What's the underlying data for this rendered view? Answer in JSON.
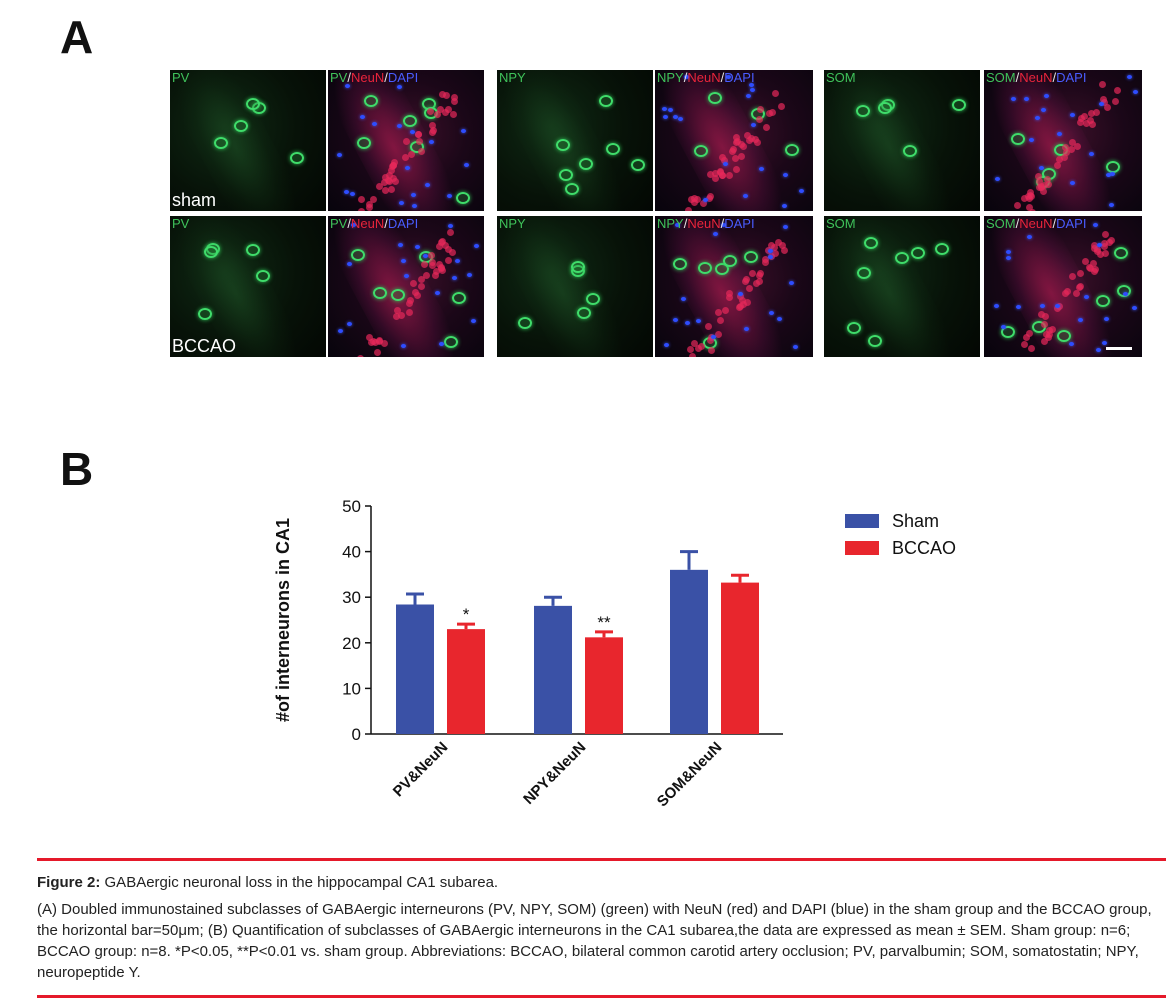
{
  "panel_a": {
    "letter": "A",
    "rows": [
      {
        "label": "sham",
        "tiles": [
          {
            "parts": [
              {
                "text": "PV",
                "color": "green"
              }
            ]
          },
          {
            "parts": [
              {
                "text": "PV",
                "color": "green"
              },
              {
                "text": "/",
                "color": "white"
              },
              {
                "text": "NeuN",
                "color": "red"
              },
              {
                "text": "/",
                "color": "white"
              },
              {
                "text": "DAPI",
                "color": "blue"
              }
            ]
          },
          {
            "parts": [
              {
                "text": "NPY",
                "color": "green"
              }
            ]
          },
          {
            "parts": [
              {
                "text": "NPY",
                "color": "green"
              },
              {
                "text": "/",
                "color": "white"
              },
              {
                "text": "NeuN",
                "color": "red"
              },
              {
                "text": "/",
                "color": "white"
              },
              {
                "text": "DAPI",
                "color": "blue"
              }
            ]
          },
          {
            "parts": [
              {
                "text": "SOM",
                "color": "green"
              }
            ]
          },
          {
            "parts": [
              {
                "text": "SOM",
                "color": "green"
              },
              {
                "text": "/",
                "color": "white"
              },
              {
                "text": "NeuN",
                "color": "red"
              },
              {
                "text": "/",
                "color": "white"
              },
              {
                "text": "DAPI",
                "color": "blue"
              }
            ]
          }
        ]
      },
      {
        "label": "BCCAO",
        "tiles": [
          {
            "parts": [
              {
                "text": "PV",
                "color": "green"
              }
            ]
          },
          {
            "parts": [
              {
                "text": "PV",
                "color": "green"
              },
              {
                "text": "/",
                "color": "white"
              },
              {
                "text": "NeuN",
                "color": "red"
              },
              {
                "text": "/",
                "color": "white"
              },
              {
                "text": "DAPI",
                "color": "blue"
              }
            ]
          },
          {
            "parts": [
              {
                "text": "NPY",
                "color": "green"
              }
            ]
          },
          {
            "parts": [
              {
                "text": "NPY",
                "color": "green"
              },
              {
                "text": "/",
                "color": "white"
              },
              {
                "text": "NeuN",
                "color": "red"
              },
              {
                "text": "/",
                "color": "white"
              },
              {
                "text": "DAPI",
                "color": "blue"
              }
            ]
          },
          {
            "parts": [
              {
                "text": "SOM",
                "color": "green"
              }
            ]
          },
          {
            "parts": [
              {
                "text": "SOM",
                "color": "green"
              },
              {
                "text": "/",
                "color": "white"
              },
              {
                "text": "NeuN",
                "color": "red"
              },
              {
                "text": "/",
                "color": "white"
              },
              {
                "text": "DAPI",
                "color": "blue"
              }
            ]
          }
        ]
      }
    ]
  },
  "panel_b": {
    "letter": "B"
  },
  "chart_data": {
    "type": "bar",
    "categories": [
      "PV&NeuN",
      "NPY&NeuN",
      "SOM&NeuN"
    ],
    "series": [
      {
        "name": "Sham",
        "color": "#3a51a6",
        "values": [
          28.4,
          28.1,
          36.0
        ],
        "errors": [
          2.3,
          1.9,
          4.0
        ]
      },
      {
        "name": "BCCAO",
        "color": "#e8262d",
        "values": [
          23.0,
          21.2,
          33.2
        ],
        "errors": [
          1.1,
          1.2,
          1.6
        ]
      }
    ],
    "annotations": [
      {
        "category": "PV&NeuN",
        "series": "BCCAO",
        "text": "*"
      },
      {
        "category": "NPY&NeuN",
        "series": "BCCAO",
        "text": "**"
      }
    ],
    "ylabel": "#of interneurons in CA1",
    "xlabel": "",
    "ylim": [
      0,
      50
    ],
    "yticks": [
      0,
      10,
      20,
      30,
      40,
      50
    ],
    "legend_position": "top-right",
    "grid": false
  },
  "caption": {
    "label": "Figure 2:",
    "title": "GABAergic neuronal loss in the hippocampal CA1 subarea.",
    "body": "(A) Doubled immunostained subclasses of GABAergic interneurons (PV, NPY, SOM) (green) with NeuN (red) and DAPI (blue) in the sham group and the BCCAO group, the horizontal bar=50μm; (B) Quantification of subclasses of GABAergic interneurons in the CA1 subarea,the data are expressed as mean ± SEM. Sham group: n=6; BCCAO group: n=8. *P<0.05, **P<0.01 vs. sham group. Abbreviations: BCCAO, bilateral common carotid artery occlusion; PV, parvalbumin; SOM, somatostatin; NPY, neuropeptide Y."
  }
}
